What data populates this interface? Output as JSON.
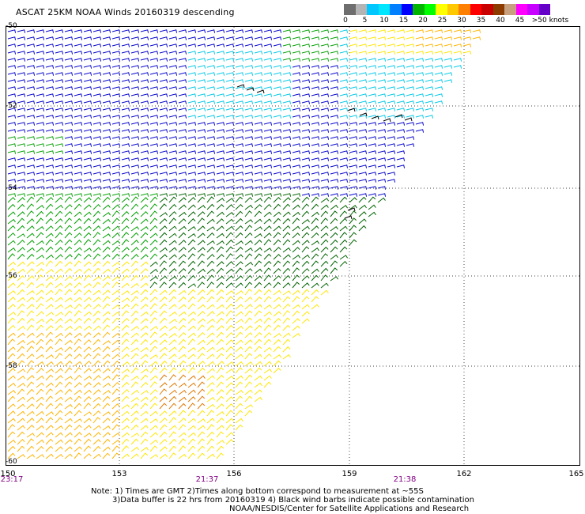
{
  "title": "ASCAT 25KM NOAA Winds 20160319 descending",
  "colorbar": {
    "colors": [
      "#6e6e6e",
      "#b4b4b4",
      "#00c8ff",
      "#00e6ff",
      "#0080ff",
      "#0000ff",
      "#00b400",
      "#00ff00",
      "#ffff00",
      "#ffc800",
      "#ff8000",
      "#ff0000",
      "#c80000",
      "#8c3c00",
      "#c8a080",
      "#ff00ff",
      "#c800ff",
      "#6400c8"
    ],
    "labels": [
      {
        "text": "0",
        "pos": 0
      },
      {
        "text": "5",
        "pos": 1
      },
      {
        "text": "10",
        "pos": 2
      },
      {
        "text": "15",
        "pos": 3
      },
      {
        "text": "20",
        "pos": 4
      },
      {
        "text": "25",
        "pos": 5
      },
      {
        "text": "30",
        "pos": 6
      },
      {
        "text": "35",
        "pos": 7
      },
      {
        "text": "40",
        "pos": 8
      },
      {
        "text": "45",
        "pos": 9
      },
      {
        "text": ">50 knots",
        "pos": 10
      }
    ]
  },
  "lat_labels": [
    "-50",
    "-52",
    "-54",
    "-56",
    "-58",
    "-60"
  ],
  "lon_labels": [
    "150",
    "153",
    "156",
    "159",
    "162",
    "165"
  ],
  "time_labels": [
    "23:17",
    "21:37",
    "21:38"
  ],
  "notes": {
    "line1": "Note: 1) Times are GMT 2)Times along bottom correspond to measurement at ~55S",
    "line2": "3)Data buffer is 22 hrs from 20160319 4) Black wind barbs indicate possible contamination",
    "line3": "NOAA/NESDIS/Center for Satellite Applications and Research"
  },
  "wind_colors": {
    "blue": "#0000cc",
    "cyan": "#00c8e6",
    "green": "#00a000",
    "dark_green": "#006400",
    "yellow": "#ffe600",
    "orange": "#ffb400",
    "dark_orange": "#e07800",
    "contamination": "#000000"
  }
}
